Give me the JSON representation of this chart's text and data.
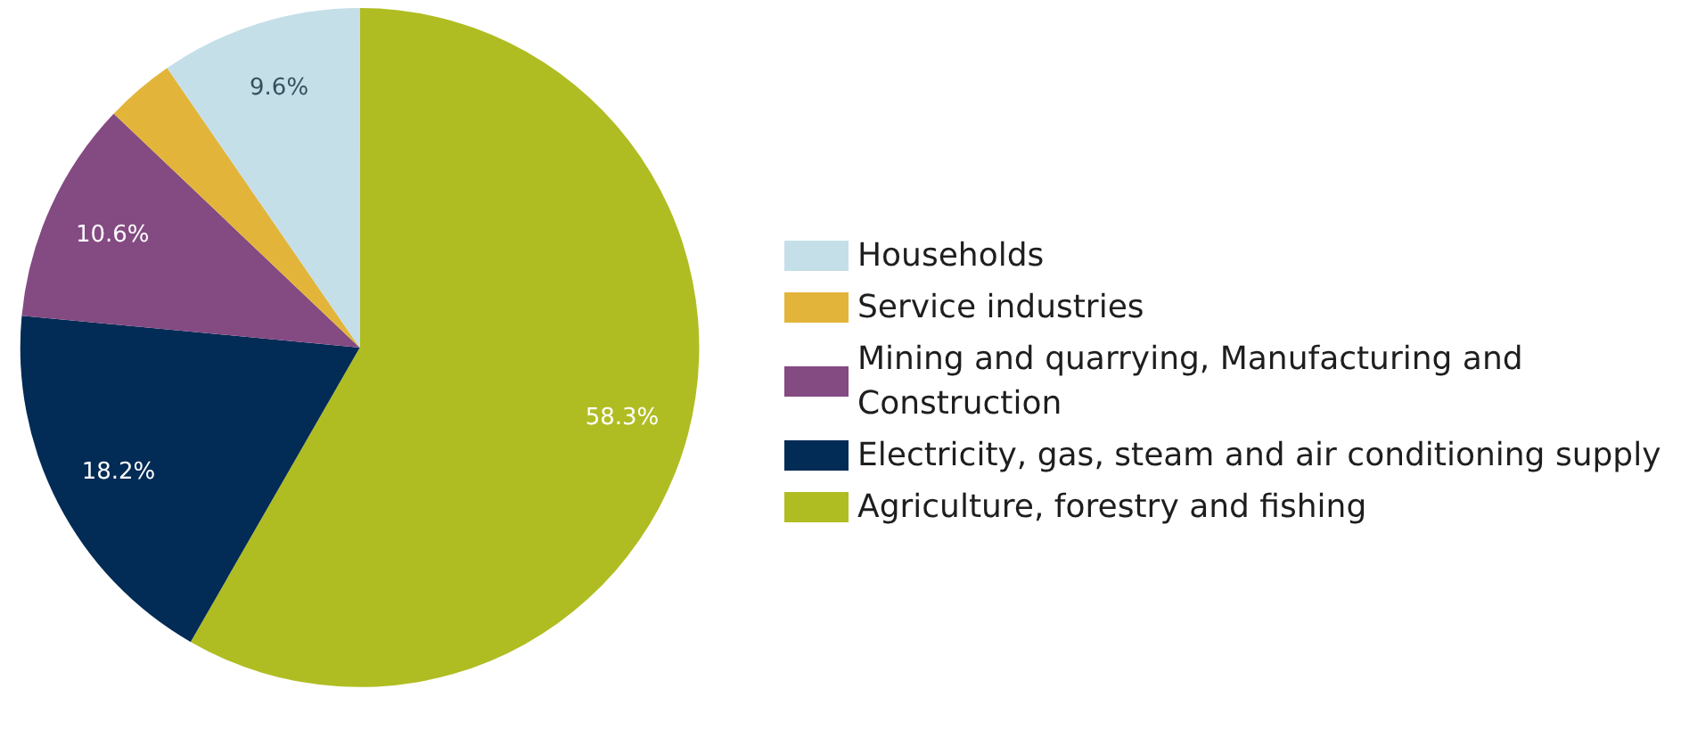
{
  "chart_data": {
    "type": "pie",
    "categories": [
      "Agriculture, forestry and fishing",
      "Electricity, gas, steam and air conditioning supply",
      "Mining and quarrying, Manufacturing and Construction",
      "Service industries",
      "Households"
    ],
    "values": [
      58.3,
      18.2,
      10.6,
      3.3,
      9.6
    ],
    "colors": [
      "#afbd22",
      "#022b55",
      "#844a82",
      "#e2b53a",
      "#c5dfe9"
    ],
    "value_labels": [
      "58.3%",
      "18.2%",
      "10.6%",
      null,
      "9.6%"
    ],
    "legend": "right"
  }
}
